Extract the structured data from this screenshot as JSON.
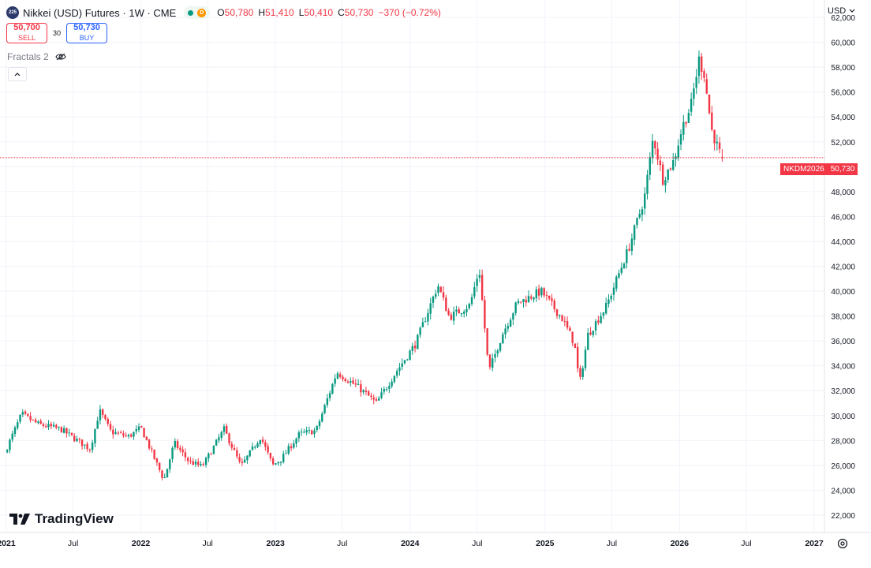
{
  "header": {
    "logo_text": "225",
    "title": "Nikkei (USD) Futures · 1W · CME",
    "status_letter": "D",
    "open_label": "O",
    "open": "50,780",
    "high_label": "H",
    "high": "51,410",
    "low_label": "L",
    "low": "50,410",
    "close_label": "C",
    "close": "50,730",
    "change": "−370 (−0.72%)"
  },
  "trade": {
    "sell_price": "50,700",
    "sell_label": "SELL",
    "spread": "30",
    "buy_price": "50,730",
    "buy_label": "BUY"
  },
  "indicator": {
    "name": "Fractals 2"
  },
  "currency": "USD",
  "last_price": {
    "ticker": "NKDM2026",
    "value": "50,730"
  },
  "watermark": "TradingView",
  "colors": {
    "up": "#089981",
    "down": "#f23645",
    "grid": "#f0f3fa",
    "text": "#131722"
  },
  "chart_data": {
    "type": "candlestick",
    "title": "Nikkei (USD) Futures · 1W · CME",
    "ylim": [
      20600,
      63400
    ],
    "y_ticks": [
      "22,000",
      "24,000",
      "26,000",
      "28,000",
      "30,000",
      "32,000",
      "34,000",
      "36,000",
      "38,000",
      "40,000",
      "42,000",
      "44,000",
      "46,000",
      "48,000",
      "50,000",
      "52,000",
      "54,000",
      "56,000",
      "58,000",
      "60,000",
      "62,000"
    ],
    "y_tick_values": [
      22000,
      24000,
      26000,
      28000,
      30000,
      32000,
      34000,
      36000,
      38000,
      40000,
      42000,
      44000,
      46000,
      48000,
      50000,
      52000,
      54000,
      56000,
      58000,
      60000,
      62000
    ],
    "x_ticks": [
      {
        "label": "2021",
        "date": "2021-01-01"
      },
      {
        "label": "Jul",
        "date": "2021-07-01"
      },
      {
        "label": "2022",
        "date": "2022-01-01"
      },
      {
        "label": "Jul",
        "date": "2022-07-01"
      },
      {
        "label": "2023",
        "date": "2023-01-01"
      },
      {
        "label": "Jul",
        "date": "2023-07-01"
      },
      {
        "label": "2024",
        "date": "2024-01-01"
      },
      {
        "label": "Jul",
        "date": "2024-07-01"
      },
      {
        "label": "2025",
        "date": "2025-01-01"
      },
      {
        "label": "Jul",
        "date": "2025-07-01"
      },
      {
        "label": "2026",
        "date": "2026-01-01"
      },
      {
        "label": "Jul",
        "date": "2026-07-01"
      },
      {
        "label": "2027",
        "date": "2027-01-01"
      }
    ],
    "start_date": "2020-12-31",
    "end_date": "2026-04-27",
    "keypoints": [
      {
        "date": "2020-12-31",
        "value": 27000
      },
      {
        "date": "2021-02-15",
        "value": 30100
      },
      {
        "date": "2021-04-01",
        "value": 29300
      },
      {
        "date": "2021-06-01",
        "value": 28900
      },
      {
        "date": "2021-08-20",
        "value": 27300
      },
      {
        "date": "2021-09-14",
        "value": 30400
      },
      {
        "date": "2021-10-15",
        "value": 28700
      },
      {
        "date": "2021-12-01",
        "value": 28300
      },
      {
        "date": "2022-01-05",
        "value": 29000
      },
      {
        "date": "2022-03-08",
        "value": 24800
      },
      {
        "date": "2022-04-05",
        "value": 27800
      },
      {
        "date": "2022-05-15",
        "value": 26300
      },
      {
        "date": "2022-06-20",
        "value": 25900
      },
      {
        "date": "2022-08-18",
        "value": 28900
      },
      {
        "date": "2022-10-03",
        "value": 25900
      },
      {
        "date": "2022-11-25",
        "value": 28300
      },
      {
        "date": "2022-12-28",
        "value": 26000
      },
      {
        "date": "2023-01-20",
        "value": 26500
      },
      {
        "date": "2023-03-10",
        "value": 28500
      },
      {
        "date": "2023-04-25",
        "value": 28800
      },
      {
        "date": "2023-06-20",
        "value": 33500
      },
      {
        "date": "2023-08-20",
        "value": 32200
      },
      {
        "date": "2023-10-05",
        "value": 31000
      },
      {
        "date": "2023-11-25",
        "value": 33400
      },
      {
        "date": "2024-01-20",
        "value": 35800
      },
      {
        "date": "2024-03-20",
        "value": 40500
      },
      {
        "date": "2024-04-20",
        "value": 37900
      },
      {
        "date": "2024-06-15",
        "value": 38900
      },
      {
        "date": "2024-07-10",
        "value": 41800
      },
      {
        "date": "2024-08-05",
        "value": 33500
      },
      {
        "date": "2024-09-10",
        "value": 36500
      },
      {
        "date": "2024-10-20",
        "value": 39000
      },
      {
        "date": "2024-12-25",
        "value": 40000
      },
      {
        "date": "2025-02-20",
        "value": 37800
      },
      {
        "date": "2025-03-25",
        "value": 35800
      },
      {
        "date": "2025-04-08",
        "value": 32500
      },
      {
        "date": "2025-05-01",
        "value": 36500
      },
      {
        "date": "2025-06-20",
        "value": 38800
      },
      {
        "date": "2025-08-20",
        "value": 43500
      },
      {
        "date": "2025-10-01",
        "value": 47500
      },
      {
        "date": "2025-10-25",
        "value": 52400
      },
      {
        "date": "2025-11-20",
        "value": 49000
      },
      {
        "date": "2025-12-20",
        "value": 50500
      },
      {
        "date": "2026-01-12",
        "value": 53200
      },
      {
        "date": "2026-02-05",
        "value": 55000
      },
      {
        "date": "2026-02-26",
        "value": 58600
      },
      {
        "date": "2026-03-12",
        "value": 57500
      },
      {
        "date": "2026-04-01",
        "value": 53000
      },
      {
        "date": "2026-04-27",
        "value": 50730
      }
    ],
    "last_close": 50730
  }
}
